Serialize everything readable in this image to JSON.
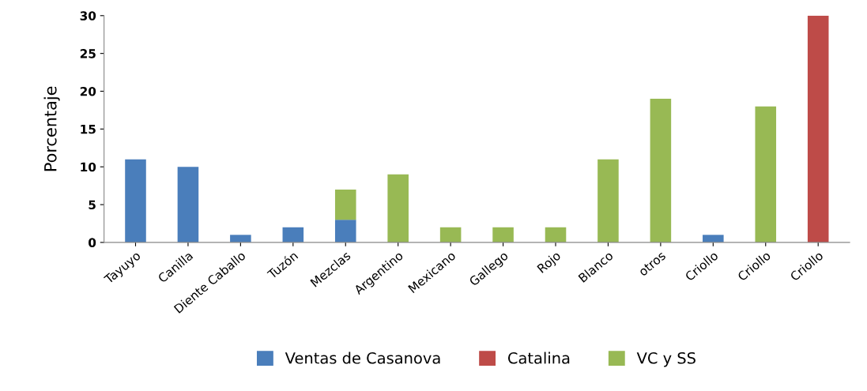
{
  "chart_data": {
    "type": "bar",
    "stacked": true,
    "ylabel": "Porcentaje",
    "categories": [
      "Tayuyo",
      "Canilla",
      "Diente Caballo",
      "Tuzón",
      "Mezclas",
      "Argentino",
      "Mexicano",
      "Gallego",
      "Rojo",
      "Blanco",
      "otros",
      "Criollo",
      "Criollo",
      "Criollo"
    ],
    "series": [
      {
        "name": "Ventas de Casanova",
        "color": "#4a7ebb",
        "values": [
          11,
          10,
          1,
          2,
          3,
          null,
          null,
          null,
          null,
          null,
          null,
          1,
          null,
          null
        ]
      },
      {
        "name": "Catalina",
        "color": "#be4b48",
        "values": [
          null,
          null,
          null,
          null,
          null,
          null,
          null,
          null,
          null,
          null,
          null,
          null,
          null,
          30
        ]
      },
      {
        "name": "VC y SS",
        "color": "#98b954",
        "values": [
          null,
          null,
          null,
          null,
          4,
          9,
          2,
          2,
          2,
          11,
          19,
          null,
          18,
          null
        ]
      }
    ],
    "ylim": [
      0,
      30
    ],
    "yticks": [
      0,
      5,
      10,
      15,
      20,
      25,
      30
    ],
    "grid": false,
    "legend": "bottom"
  }
}
